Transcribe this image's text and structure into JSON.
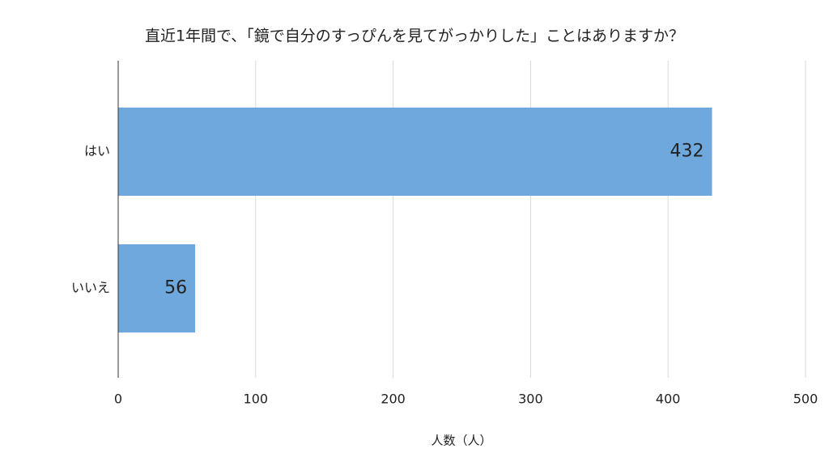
{
  "chart_data": {
    "type": "bar",
    "orientation": "horizontal",
    "title": "直近1年間で、「鏡で自分のすっぴんを見てがっかりした」ことはありますか？",
    "x_label": "人数（人）",
    "categories": [
      "はい",
      "いいえ"
    ],
    "values": [
      432,
      56
    ],
    "color": "#6fa8dc",
    "xlim": [
      0,
      500
    ],
    "xticks": [
      0,
      100,
      200,
      300,
      400,
      500
    ],
    "grid": true
  }
}
